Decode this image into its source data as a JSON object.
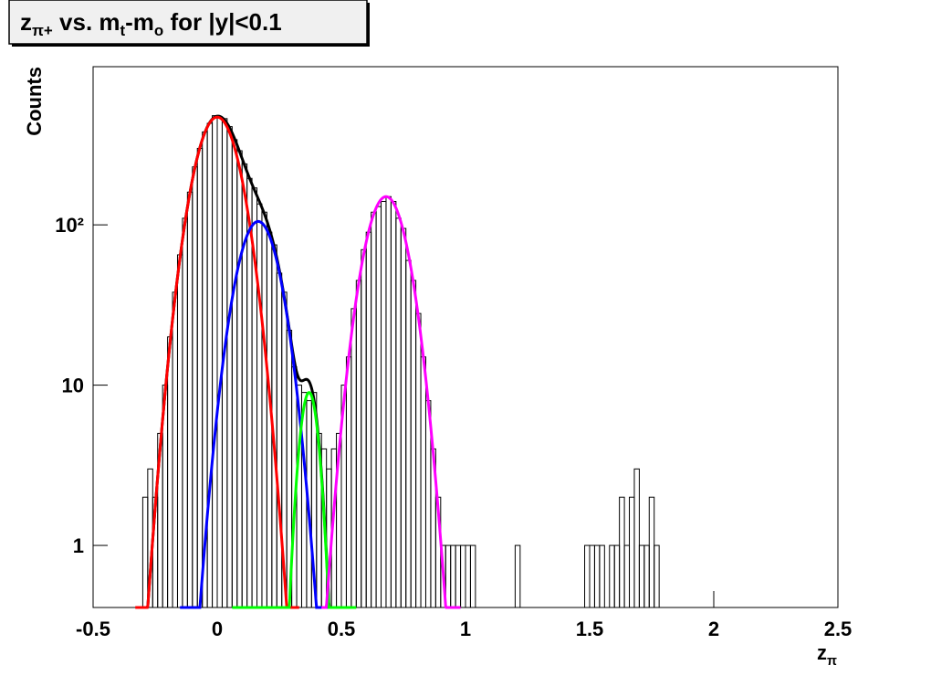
{
  "chart_data": {
    "type": "histogram",
    "title": [
      {
        "text": "z"
      },
      {
        "text": "π+",
        "baseline": "sub"
      },
      {
        "text": " vs. m"
      },
      {
        "text": "t",
        "baseline": "sub"
      },
      {
        "text": "-m"
      },
      {
        "text": "o",
        "baseline": "sub"
      },
      {
        "text": " for |y|<0.1"
      }
    ],
    "y_label": "Counts",
    "x_label": [
      {
        "text": "z"
      },
      {
        "text": "π",
        "baseline": "sub"
      }
    ],
    "log_y": true,
    "xlim": [
      -0.5,
      2.5
    ],
    "ylim": [
      0.41,
      970
    ],
    "xticks": [
      -0.5,
      0,
      0.5,
      1,
      1.5,
      2,
      2.5
    ],
    "yticks": [
      1,
      10,
      {
        "value": 100,
        "label": "10²"
      }
    ],
    "color": "#000000",
    "bins": [
      -0.3,
      -0.28,
      -0.26,
      -0.24,
      -0.22,
      -0.2,
      -0.18,
      -0.16,
      -0.14,
      -0.12,
      -0.1,
      -0.08,
      -0.06,
      -0.04,
      -0.02,
      0,
      0.02,
      0.04,
      0.06,
      0.08,
      0.1,
      0.12,
      0.14,
      0.16,
      0.18,
      0.2,
      0.22,
      0.24,
      0.26,
      0.28,
      0.3,
      0.32,
      0.34,
      0.36,
      0.38,
      0.4,
      0.42,
      0.44,
      0.46,
      0.48,
      0.5,
      0.52,
      0.54,
      0.56,
      0.58,
      0.6,
      0.62,
      0.64,
      0.66,
      0.68,
      0.7,
      0.72,
      0.74,
      0.76,
      0.78,
      0.8,
      0.82,
      0.84,
      0.86,
      0.88,
      0.9,
      0.92,
      0.94,
      0.96,
      0.98,
      1,
      1.02,
      1.04,
      1.06,
      1.08,
      1.1,
      1.12,
      1.14,
      1.16,
      1.18,
      1.2,
      1.22,
      1.24,
      1.26,
      1.28,
      1.3,
      1.32,
      1.34,
      1.36,
      1.38,
      1.4,
      1.42,
      1.44,
      1.46,
      1.48,
      1.5,
      1.52,
      1.54,
      1.56,
      1.58,
      1.6,
      1.62,
      1.64,
      1.66,
      1.68,
      1.7,
      1.72,
      1.74,
      1.76,
      1.78
    ],
    "values": [
      2,
      3,
      2,
      5,
      10,
      20,
      38,
      65,
      110,
      160,
      230,
      300,
      380,
      430,
      480,
      470,
      460,
      410,
      340,
      290,
      240,
      195,
      170,
      135,
      120,
      90,
      75,
      50,
      38,
      22,
      13,
      10,
      9,
      8,
      9,
      5,
      4,
      3,
      4,
      5,
      10,
      15,
      30,
      45,
      70,
      90,
      120,
      130,
      140,
      150,
      140,
      110,
      95,
      60,
      45,
      28,
      15,
      8,
      4,
      2,
      1,
      1,
      1,
      1,
      1,
      1,
      1,
      0,
      0,
      0,
      0,
      0,
      0,
      0,
      0,
      1,
      0,
      0,
      0,
      0,
      0,
      0,
      0,
      0,
      0,
      0,
      0,
      0,
      0,
      1,
      1,
      1,
      1,
      0,
      1,
      1,
      2,
      1,
      2,
      3,
      1,
      1,
      2,
      1
    ],
    "fit_total": {
      "color": "#000000",
      "components": [
        0,
        1,
        2
      ],
      "range": [
        -0.3,
        0.47
      ]
    },
    "fits": [
      {
        "color": "#ff0000",
        "amplitude": 470,
        "mean": 0,
        "sigma": 0.0746,
        "range": [
          -0.33,
          0.33
        ]
      },
      {
        "color": "#0000ff",
        "amplitude": 105,
        "mean": 0.165,
        "sigma": 0.0705,
        "range": [
          -0.15,
          0.45
        ]
      },
      {
        "color": "#00ff00",
        "amplitude": 9,
        "mean": 0.37,
        "sigma": 0.032,
        "range": [
          0.06,
          0.56
        ]
      },
      {
        "color": "#ff00ff",
        "amplitude": 150,
        "mean": 0.68,
        "sigma": 0.07,
        "range": [
          0.42,
          0.98
        ]
      }
    ]
  }
}
